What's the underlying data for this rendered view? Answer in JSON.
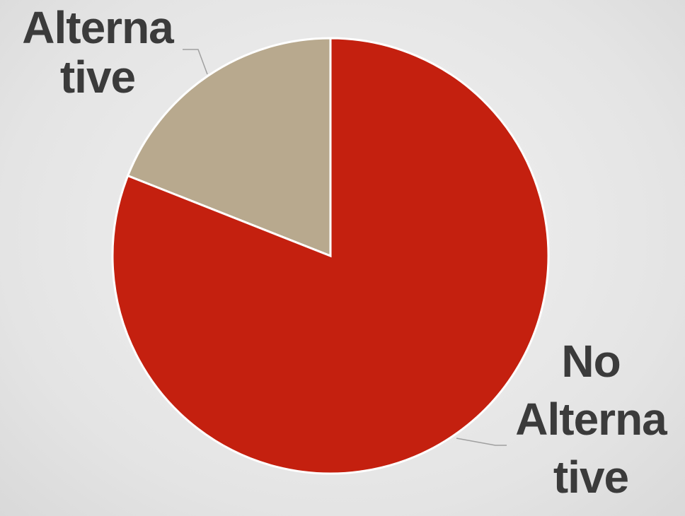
{
  "chart_data": {
    "type": "pie",
    "categories": [
      "No Alternative",
      "Alternative"
    ],
    "values": [
      81,
      19
    ],
    "colors": [
      "#c4200f",
      "#b8a98e"
    ]
  }
}
